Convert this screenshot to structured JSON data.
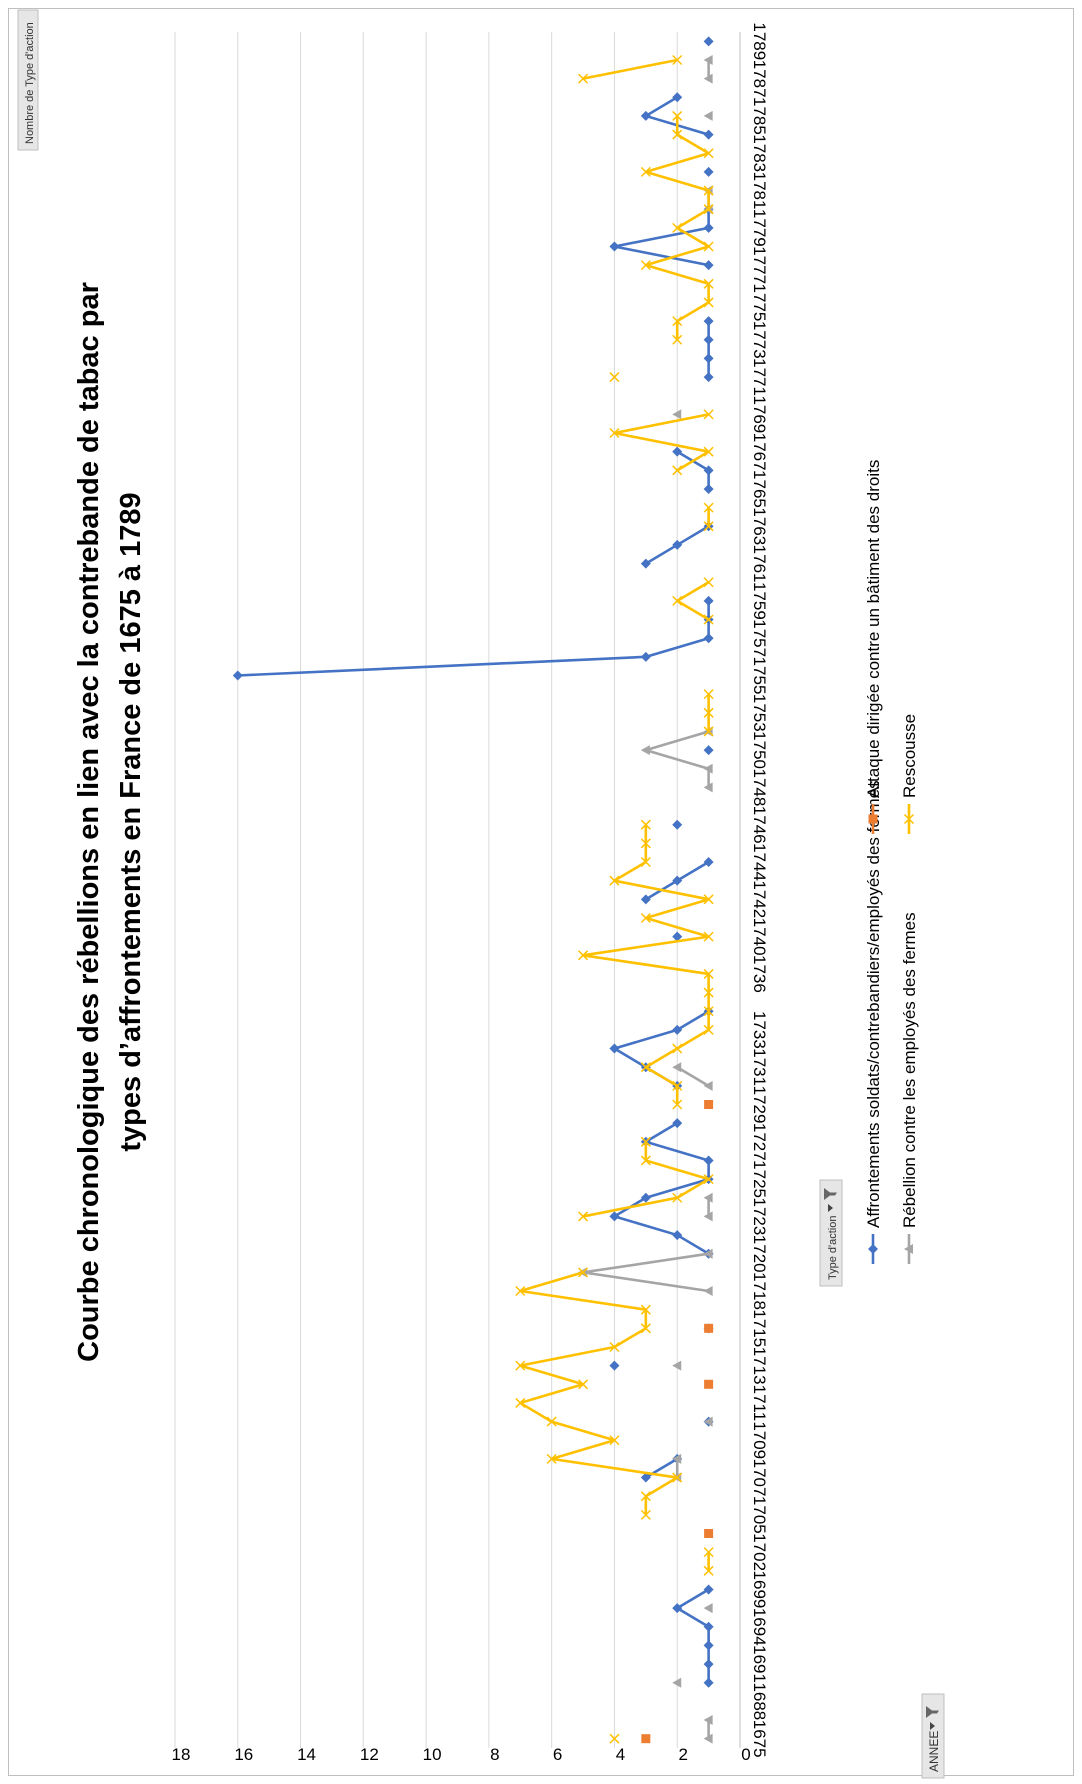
{
  "pivot": {
    "values_button": "Nombre de Type d'action",
    "axis_button": "ANNEE",
    "legend_button": "Type d'action"
  },
  "colors": {
    "affrontements": "#4472C4",
    "attaque": "#ED7D31",
    "rebellion": "#A5A5A5",
    "rescousse": "#FFC000",
    "grid": "#D9D9D9"
  },
  "chart_data": {
    "type": "line",
    "title_lines": [
      "Courbe chronologique des rébellions en lien avec la contrebande de tabac par",
      "types d’affrontements en France de 1675 à 1789"
    ],
    "ylim": [
      0,
      18
    ],
    "yticks": [
      "0",
      "2",
      "4",
      "6",
      "8",
      "10",
      "12",
      "14",
      "16",
      "18"
    ],
    "grid": true,
    "legend_position": "bottom",
    "categories": [
      "1675",
      "1687",
      "1688",
      "1690",
      "1691",
      "1692",
      "1694",
      "1698",
      "1699",
      "1700",
      "1702",
      "1704",
      "1705",
      "1706",
      "1707",
      "1708",
      "1709",
      "1710",
      "1711",
      "1712",
      "1713",
      "1714",
      "1715",
      "1717",
      "1718",
      "1719",
      "1720",
      "1721",
      "1723",
      "1724",
      "1725",
      "1726",
      "1727",
      "1728",
      "1729",
      "1730",
      "1731",
      "1732",
      "1733",
      "1734",
      "1735",
      "1736",
      "1738",
      "1740",
      "1741",
      "1742",
      "1743",
      "1744",
      "1745",
      "1746",
      "1747",
      "1748",
      "1749",
      "1750",
      "1751",
      "1753",
      "1754",
      "1755",
      "1756",
      "1757",
      "1758",
      "1759",
      "1760",
      "1761",
      "1762",
      "1763",
      "1764",
      "1765",
      "1766",
      "1767",
      "1768",
      "1769",
      "1770",
      "1771",
      "1772",
      "1773",
      "1774",
      "1775",
      "1776",
      "1777",
      "1778",
      "1779",
      "1780",
      "1781",
      "1782",
      "1783",
      "1784",
      "1785",
      "1786",
      "1787",
      "1788",
      "1789"
    ],
    "tick_labels": [
      "1675",
      "1688",
      "1691",
      "1694",
      "1699",
      "1702",
      "1705",
      "1707",
      "1709",
      "1711",
      "1713",
      "1715",
      "1718",
      "1720",
      "1723",
      "1725",
      "1727",
      "1729",
      "1731",
      "1733",
      "1736",
      "1740",
      "1742",
      "1744",
      "1746",
      "1748",
      "1750",
      "1753",
      "1755",
      "1757",
      "1759",
      "1761",
      "1763",
      "1765",
      "1767",
      "1769",
      "1771",
      "1773",
      "1775",
      "1777",
      "1779",
      "1781",
      "1783",
      "1785",
      "1787",
      "1789"
    ],
    "series": [
      {
        "name": "Affrontements soldats/contrebandiers/employés des fermes",
        "key": "affrontements",
        "marker": "diamond",
        "values": [
          null,
          null,
          null,
          1,
          1,
          1,
          1,
          2,
          1,
          null,
          null,
          null,
          null,
          null,
          3,
          2,
          null,
          1,
          null,
          null,
          4,
          null,
          1,
          null,
          null,
          null,
          1,
          2,
          4,
          3,
          1,
          1,
          3,
          2,
          null,
          2,
          3,
          4,
          2,
          1,
          null,
          null,
          null,
          2,
          null,
          3,
          2,
          1,
          null,
          2,
          null,
          null,
          null,
          1,
          null,
          null,
          null,
          16,
          3,
          1,
          1,
          1,
          null,
          3,
          2,
          1,
          null,
          1,
          1,
          2,
          null,
          null,
          null,
          1,
          1,
          1,
          1,
          null,
          null,
          1,
          4,
          1,
          1,
          null,
          1,
          null,
          1,
          3,
          2,
          null,
          null,
          1
        ]
      },
      {
        "name": "Attaque dirigée contre un bâtiment des droits",
        "key": "attaque",
        "marker": "square",
        "values": [
          3,
          null,
          null,
          null,
          null,
          null,
          null,
          null,
          null,
          null,
          null,
          1,
          null,
          null,
          null,
          null,
          null,
          null,
          null,
          1,
          null,
          null,
          1,
          null,
          null,
          null,
          null,
          null,
          null,
          null,
          null,
          null,
          null,
          null,
          1,
          null,
          null,
          null,
          null,
          null,
          null,
          null,
          null,
          null,
          null,
          null,
          null,
          null,
          null,
          null,
          null,
          null,
          null,
          null,
          null,
          null,
          null,
          null,
          null,
          null,
          null,
          null,
          null,
          null,
          null,
          null,
          null,
          null,
          null,
          null,
          null,
          null,
          null,
          null,
          null,
          null,
          null,
          null,
          null,
          null,
          null,
          null,
          null,
          null,
          null,
          null,
          null,
          null,
          null,
          null,
          null,
          null
        ]
      },
      {
        "name": "Rébellion contre les employés des fermes",
        "key": "rebellion",
        "marker": "triangle",
        "values": [
          1,
          1,
          null,
          2,
          null,
          null,
          null,
          1,
          null,
          null,
          null,
          null,
          null,
          null,
          2,
          2,
          null,
          1,
          null,
          null,
          2,
          null,
          null,
          null,
          1,
          5,
          1,
          null,
          1,
          1,
          null,
          null,
          null,
          null,
          null,
          1,
          2,
          null,
          null,
          null,
          null,
          null,
          null,
          null,
          null,
          null,
          null,
          null,
          null,
          null,
          null,
          1,
          1,
          3,
          1,
          null,
          null,
          null,
          null,
          null,
          null,
          null,
          null,
          null,
          null,
          null,
          null,
          null,
          null,
          null,
          null,
          2,
          null,
          null,
          null,
          null,
          null,
          null,
          null,
          null,
          null,
          null,
          1,
          1,
          null,
          null,
          null,
          1,
          null,
          1,
          1,
          null
        ]
      },
      {
        "name": "Rescousse",
        "key": "rescousse",
        "marker": "x",
        "values": [
          4,
          null,
          null,
          null,
          null,
          null,
          null,
          null,
          null,
          1,
          1,
          null,
          3,
          3,
          2,
          6,
          4,
          6,
          7,
          5,
          7,
          4,
          3,
          3,
          7,
          5,
          null,
          null,
          5,
          2,
          1,
          3,
          3,
          null,
          2,
          2,
          3,
          2,
          1,
          1,
          1,
          1,
          5,
          1,
          3,
          1,
          4,
          3,
          3,
          3,
          null,
          null,
          null,
          null,
          1,
          1,
          1,
          null,
          null,
          null,
          1,
          2,
          1,
          null,
          null,
          1,
          1,
          null,
          2,
          1,
          4,
          1,
          null,
          4,
          null,
          2,
          2,
          1,
          1,
          3,
          1,
          2,
          1,
          1,
          3,
          1,
          2,
          2,
          null,
          5,
          2,
          null
        ]
      }
    ]
  }
}
